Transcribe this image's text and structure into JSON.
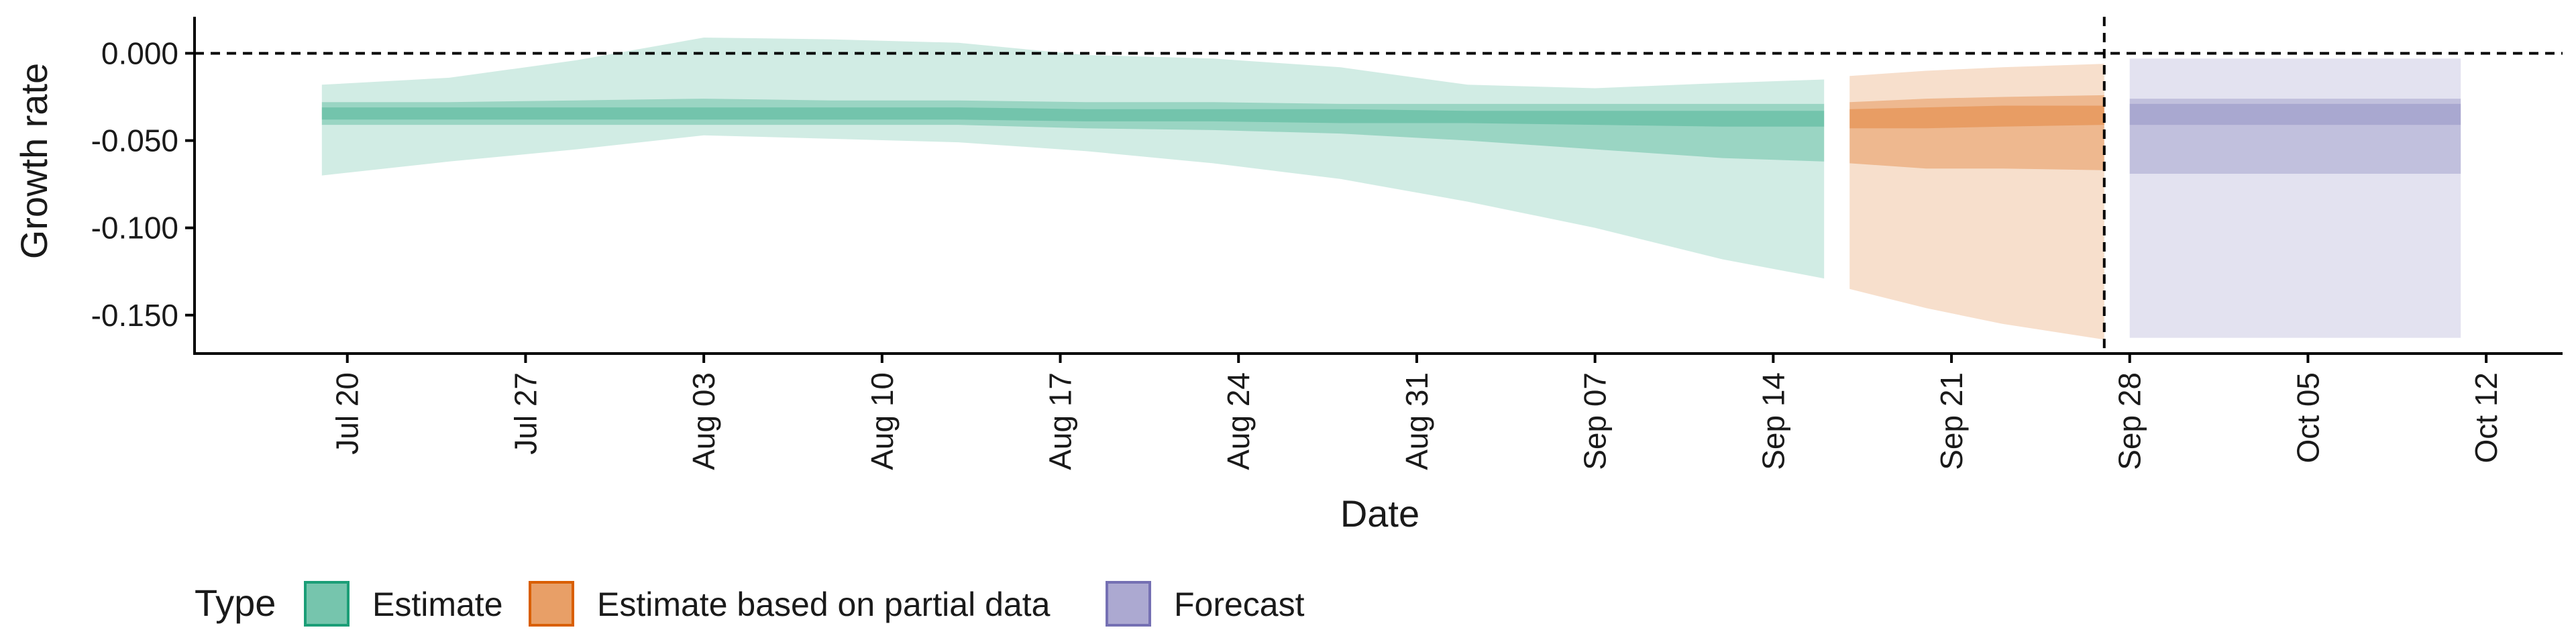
{
  "chart_data": {
    "type": "area",
    "title": "",
    "xlabel": "Date",
    "ylabel": "Growth rate",
    "x_type": "date",
    "x_ticks": [
      "Jul 20",
      "Jul 27",
      "Aug 03",
      "Aug 10",
      "Aug 17",
      "Aug 24",
      "Aug 31",
      "Sep 07",
      "Sep 14",
      "Sep 21",
      "Sep 28",
      "Oct 05",
      "Oct 12"
    ],
    "x_tick_dates": [
      "2020-07-20",
      "2020-07-27",
      "2020-08-03",
      "2020-08-10",
      "2020-08-17",
      "2020-08-24",
      "2020-08-31",
      "2020-09-07",
      "2020-09-14",
      "2020-09-21",
      "2020-09-28",
      "2020-10-05",
      "2020-10-12"
    ],
    "x_range": [
      "2020-07-14",
      "2020-10-15"
    ],
    "y_ticks": [
      0.0,
      -0.05,
      -0.1,
      -0.15
    ],
    "y_tick_labels": [
      "0.000",
      "-0.050",
      "-0.100",
      "-0.150"
    ],
    "ylim": [
      -0.172,
      0.019
    ],
    "reference_lines": {
      "horizontal_y": 0.0,
      "vertical_x": "2020-09-27"
    },
    "grid": false,
    "legend": {
      "title": "Type",
      "position": "bottom-left",
      "entries": [
        {
          "label": "Estimate",
          "color": "#1b9e77"
        },
        {
          "label": "Estimate based on partial data",
          "color": "#d95f02"
        },
        {
          "label": "Forecast",
          "color": "#7570b3"
        }
      ]
    },
    "series": [
      {
        "name": "Estimate",
        "color": "#1b9e77",
        "x": [
          "2020-07-19",
          "2020-07-24",
          "2020-07-29",
          "2020-08-03",
          "2020-08-08",
          "2020-08-13",
          "2020-08-18",
          "2020-08-23",
          "2020-08-28",
          "2020-09-02",
          "2020-09-07",
          "2020-09-12",
          "2020-09-16"
        ],
        "median": [
          -0.034,
          -0.034,
          -0.034,
          -0.034,
          -0.034,
          -0.034,
          -0.035,
          -0.035,
          -0.036,
          -0.036,
          -0.037,
          -0.037,
          -0.037
        ],
        "lower_20": [
          -0.031,
          -0.031,
          -0.031,
          -0.031,
          -0.031,
          -0.031,
          -0.032,
          -0.032,
          -0.032,
          -0.033,
          -0.033,
          -0.033,
          -0.033
        ],
        "upper_20": [
          -0.038,
          -0.038,
          -0.038,
          -0.038,
          -0.038,
          -0.038,
          -0.039,
          -0.039,
          -0.04,
          -0.04,
          -0.041,
          -0.042,
          -0.042
        ],
        "lower_50": [
          -0.028,
          -0.028,
          -0.027,
          -0.026,
          -0.027,
          -0.027,
          -0.028,
          -0.028,
          -0.029,
          -0.029,
          -0.029,
          -0.029,
          -0.029
        ],
        "upper_50": [
          -0.041,
          -0.041,
          -0.041,
          -0.041,
          -0.041,
          -0.041,
          -0.043,
          -0.044,
          -0.046,
          -0.05,
          -0.055,
          -0.06,
          -0.062
        ],
        "lower_90": [
          -0.018,
          -0.014,
          -0.004,
          0.009,
          0.008,
          0.006,
          -0.001,
          -0.003,
          -0.008,
          -0.018,
          -0.02,
          -0.017,
          -0.015
        ],
        "upper_90": [
          -0.07,
          -0.062,
          -0.055,
          -0.047,
          -0.049,
          -0.051,
          -0.056,
          -0.063,
          -0.072,
          -0.085,
          -0.1,
          -0.118,
          -0.129
        ]
      },
      {
        "name": "Estimate based on partial data",
        "color": "#d95f02",
        "x": [
          "2020-09-17",
          "2020-09-20",
          "2020-09-23",
          "2020-09-27"
        ],
        "median": [
          -0.037,
          -0.037,
          -0.036,
          -0.035
        ],
        "lower_20": [
          -0.032,
          -0.031,
          -0.03,
          -0.03
        ],
        "upper_20": [
          -0.043,
          -0.043,
          -0.042,
          -0.041
        ],
        "lower_50": [
          -0.028,
          -0.026,
          -0.025,
          -0.024
        ],
        "upper_50": [
          -0.063,
          -0.066,
          -0.066,
          -0.067
        ],
        "lower_90": [
          -0.013,
          -0.01,
          -0.008,
          -0.006
        ],
        "upper_90": [
          -0.135,
          -0.146,
          -0.155,
          -0.164
        ]
      },
      {
        "name": "Forecast",
        "color": "#7570b3",
        "x": [
          "2020-09-28",
          "2020-10-11"
        ],
        "median": [
          -0.035,
          -0.035
        ],
        "lower_20": [
          -0.029,
          -0.029
        ],
        "upper_20": [
          -0.041,
          -0.041
        ],
        "lower_50": [
          -0.026,
          -0.026
        ],
        "upper_50": [
          -0.069,
          -0.069
        ],
        "lower_90": [
          -0.003,
          -0.003
        ],
        "upper_90": [
          -0.163,
          -0.163
        ]
      }
    ]
  }
}
